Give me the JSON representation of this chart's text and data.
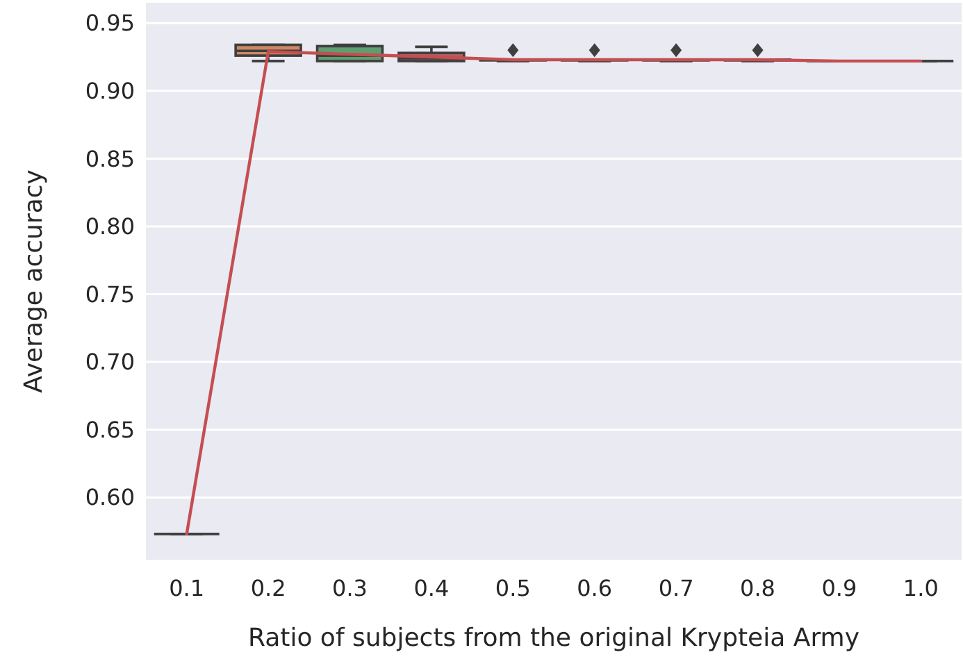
{
  "chart_data": {
    "type": "box",
    "xlabel": "Ratio of subjects from the original Krypteia Army",
    "ylabel": "Average accuracy",
    "categories": [
      "0.1",
      "0.2",
      "0.3",
      "0.4",
      "0.5",
      "0.6",
      "0.7",
      "0.8",
      "0.9",
      "1.0"
    ],
    "colors": [
      "#3f3f3f",
      "#cc8963",
      "#5f9e6e",
      "#b55d60",
      "#857aab",
      "#8d7866",
      "#d095bf",
      "#8c8c8c",
      "#3f3f3f",
      "#3f3f3f"
    ],
    "boxes": [
      {
        "low": 0.573,
        "q1": 0.573,
        "median": 0.573,
        "q3": 0.573,
        "high": 0.573
      },
      {
        "low": 0.922,
        "q1": 0.926,
        "median": 0.9295,
        "q3": 0.934,
        "high": 0.934
      },
      {
        "low": 0.922,
        "q1": 0.922,
        "median": 0.926,
        "q3": 0.933,
        "high": 0.934
      },
      {
        "low": 0.922,
        "q1": 0.922,
        "median": 0.924,
        "q3": 0.928,
        "high": 0.9325
      },
      {
        "low": 0.922,
        "q1": 0.9225,
        "median": 0.923,
        "q3": 0.923,
        "high": 0.923,
        "outliers": [
          0.93
        ]
      },
      {
        "low": 0.922,
        "q1": 0.9225,
        "median": 0.923,
        "q3": 0.923,
        "high": 0.923,
        "outliers": [
          0.93
        ]
      },
      {
        "low": 0.922,
        "q1": 0.9225,
        "median": 0.923,
        "q3": 0.923,
        "high": 0.923,
        "outliers": [
          0.93
        ]
      },
      {
        "low": 0.922,
        "q1": 0.9225,
        "median": 0.923,
        "q3": 0.923,
        "high": 0.923,
        "outliers": [
          0.93
        ]
      },
      {
        "low": 0.922,
        "q1": 0.922,
        "median": 0.922,
        "q3": 0.922,
        "high": 0.922
      },
      {
        "low": 0.922,
        "q1": 0.922,
        "median": 0.922,
        "q3": 0.922,
        "high": 0.922
      }
    ],
    "series": [
      {
        "type": "line",
        "color": "#c44e52",
        "values": [
          0.573,
          0.929,
          0.927,
          0.925,
          0.923,
          0.923,
          0.923,
          0.923,
          0.922,
          0.922
        ]
      }
    ],
    "ylim": [
      0.554,
      0.965
    ],
    "yticks": [
      {
        "value": 0.6,
        "label": "0.60"
      },
      {
        "value": 0.65,
        "label": "0.65"
      },
      {
        "value": 0.7,
        "label": "0.70"
      },
      {
        "value": 0.75,
        "label": "0.75"
      },
      {
        "value": 0.8,
        "label": "0.80"
      },
      {
        "value": 0.85,
        "label": "0.85"
      },
      {
        "value": 0.9,
        "label": "0.90"
      },
      {
        "value": 0.95,
        "label": "0.95"
      }
    ],
    "grid": "y"
  }
}
